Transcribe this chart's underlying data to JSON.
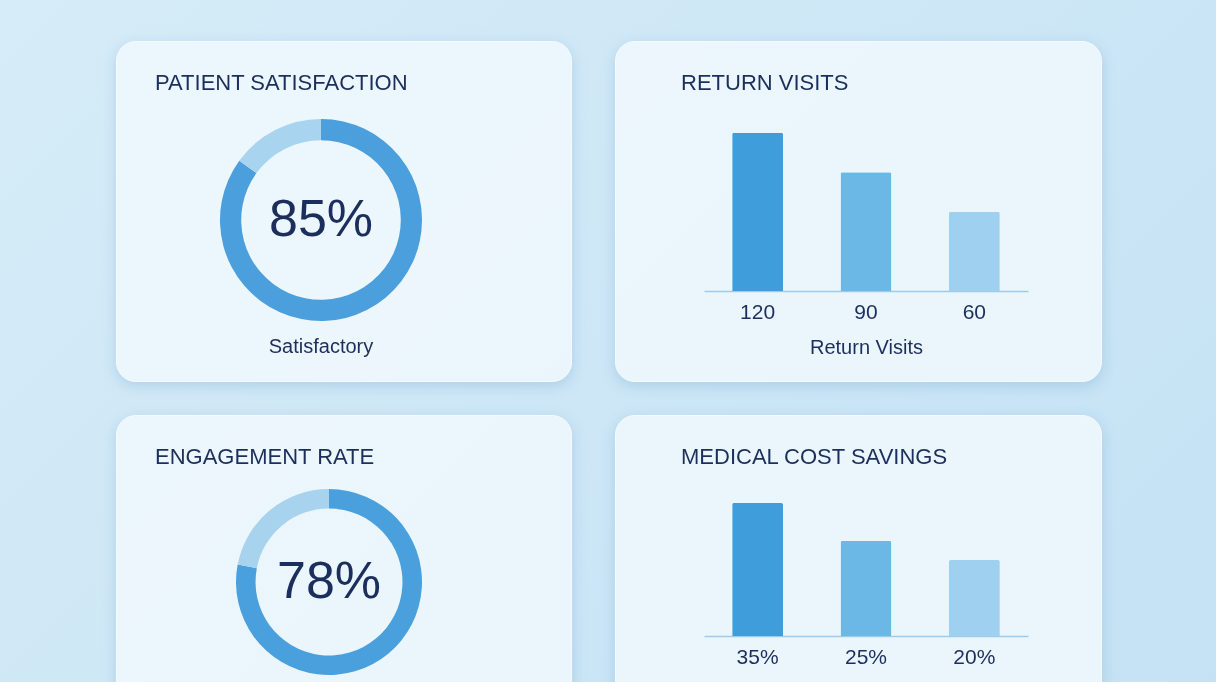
{
  "chart_data": [
    {
      "type": "donut",
      "title": "PATIENT SATISFACTION",
      "categories": [
        null,
        null
      ],
      "values": [
        85,
        15
      ],
      "colors": [
        "#4a9fdc",
        "#a9d4ef"
      ],
      "annotations": [
        "85%",
        "Satisfactory"
      ]
    },
    {
      "type": "bar",
      "title": "RETURN VISITS",
      "categories": [
        null,
        null,
        null
      ],
      "values": [
        120,
        90,
        60
      ],
      "colors": [
        "#3f9ddb",
        "#6bb8e6",
        "#9fd0f0"
      ],
      "value_labels": [
        "120",
        "90",
        "60"
      ],
      "xlabel": "Return Visits"
    },
    {
      "type": "donut",
      "title": "ENGAGEMENT RATE",
      "categories": [
        null,
        null
      ],
      "values": [
        78,
        22
      ],
      "colors": [
        "#4aa0dc",
        "#a8d3ef"
      ],
      "annotations": [
        "78%"
      ]
    },
    {
      "type": "bar",
      "title": "MEDICAL COST SAVINGS",
      "categories": [
        null,
        null,
        null
      ],
      "values": [
        35,
        25,
        20
      ],
      "colors": [
        "#3f9ddb",
        "#6bb8e6",
        "#9fd0f0"
      ],
      "value_labels": [
        "35%",
        "25%",
        "20%"
      ]
    }
  ]
}
